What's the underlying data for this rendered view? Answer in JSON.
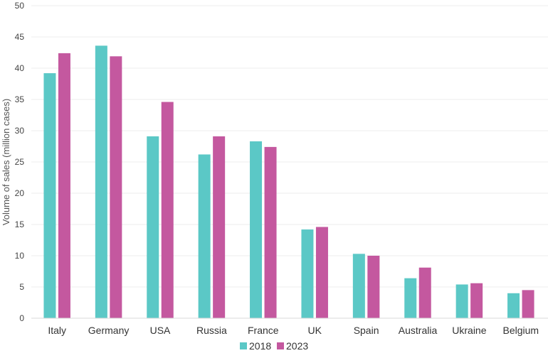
{
  "chart_data": {
    "type": "bar",
    "title": "",
    "xlabel": "",
    "ylabel": "Volume of sales (million cases)",
    "ylim": [
      0,
      50
    ],
    "yticks": [
      0,
      5,
      10,
      15,
      20,
      25,
      30,
      35,
      40,
      45,
      50
    ],
    "grid": true,
    "legend_position": "bottom",
    "categories": [
      "Italy",
      "Germany",
      "USA",
      "Russia",
      "France",
      "UK",
      "Spain",
      "Australia",
      "Ukraine",
      "Belgium"
    ],
    "series": [
      {
        "name": "2018",
        "color": "#5bc8c6",
        "values": [
          39.2,
          43.6,
          29.1,
          26.2,
          28.3,
          14.2,
          10.3,
          6.4,
          5.4,
          4.0
        ]
      },
      {
        "name": "2023",
        "color": "#c4589f",
        "values": [
          42.4,
          41.9,
          34.6,
          29.1,
          27.4,
          14.6,
          10.0,
          8.1,
          5.6,
          4.5
        ]
      }
    ]
  }
}
